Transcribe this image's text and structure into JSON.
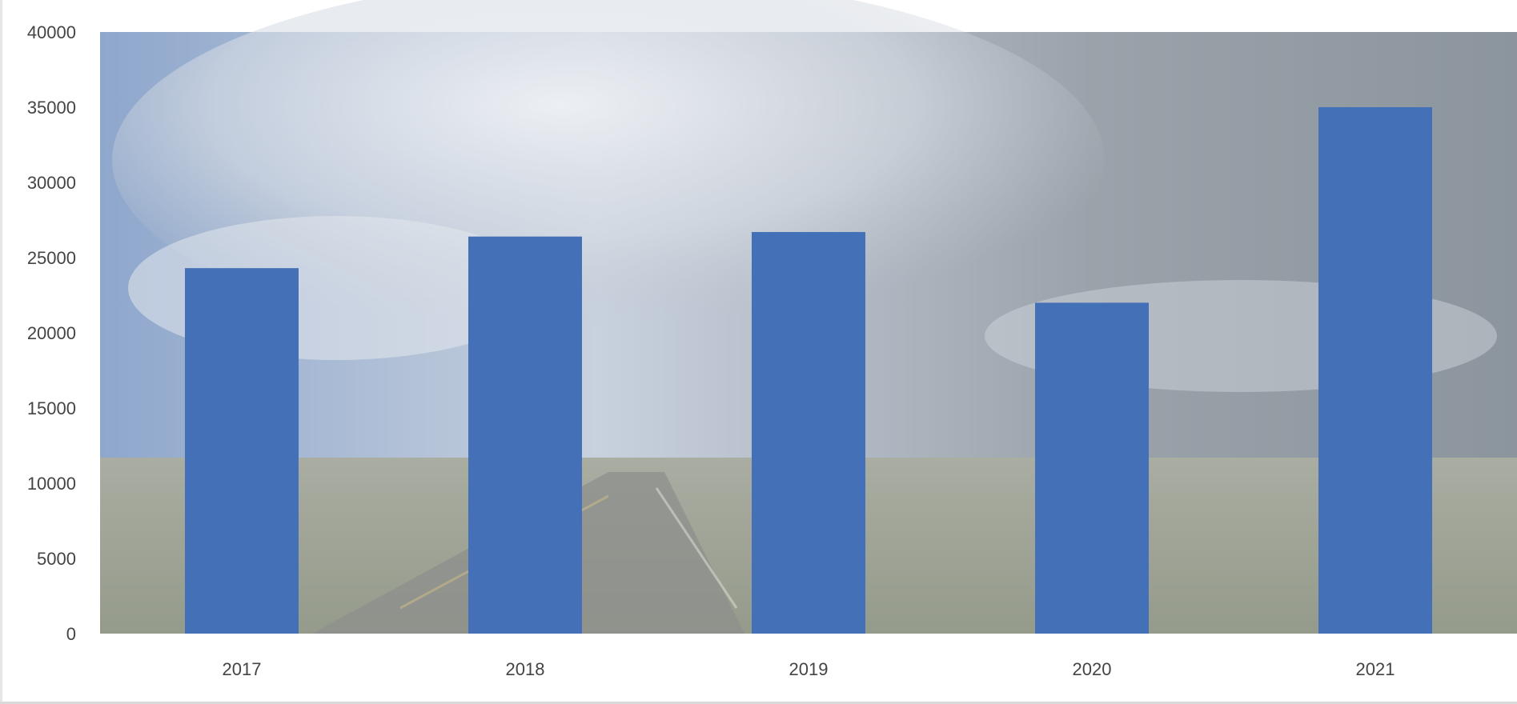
{
  "chart_data": {
    "type": "bar",
    "categories": [
      "2017",
      "2018",
      "2019",
      "2020",
      "2021"
    ],
    "values": [
      24300,
      26400,
      26700,
      22000,
      35000
    ],
    "title": "",
    "xlabel": "",
    "ylabel": "",
    "ylim": [
      0,
      40000
    ],
    "yticks": [
      "0",
      "5000",
      "10000",
      "15000",
      "20000",
      "25000",
      "30000",
      "35000",
      "40000"
    ],
    "grid": false,
    "legend": "none",
    "bar_color": "#4470b8",
    "background": "photo of a desert road under a cloudy sky"
  }
}
